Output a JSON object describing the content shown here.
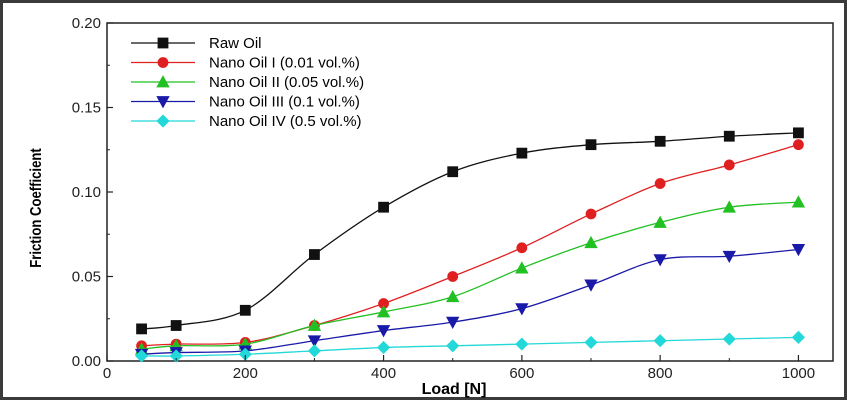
{
  "chart_data": {
    "type": "line",
    "title": "",
    "xlabel": "Load [N]",
    "ylabel": "Friction Coefficient",
    "xlim": [
      0,
      1050
    ],
    "ylim": [
      0,
      0.2
    ],
    "xticks": [
      "0",
      "200",
      "400",
      "600",
      "800",
      "1000"
    ],
    "yticks": [
      "0.00",
      "0.05",
      "0.10",
      "0.15",
      "0.20"
    ],
    "x": [
      50,
      100,
      200,
      300,
      400,
      500,
      600,
      700,
      800,
      900,
      1000
    ],
    "legend_position": "top-left",
    "grid": false,
    "series": [
      {
        "name": "Raw Oil",
        "color": "#111111",
        "marker": "square",
        "values": [
          0.019,
          0.021,
          0.03,
          0.063,
          0.091,
          0.112,
          0.123,
          0.128,
          0.13,
          0.133,
          0.135
        ]
      },
      {
        "name": "Nano Oil I (0.01 vol.%)",
        "color": "#e02020",
        "marker": "circle",
        "values": [
          0.009,
          0.01,
          0.011,
          0.021,
          0.034,
          0.05,
          0.067,
          0.087,
          0.105,
          0.116,
          0.128
        ]
      },
      {
        "name": "Nano Oil II (0.05 vol.%)",
        "color": "#22c022",
        "marker": "triangle-up",
        "values": [
          0.007,
          0.009,
          0.01,
          0.021,
          0.029,
          0.038,
          0.055,
          0.07,
          0.082,
          0.091,
          0.094
        ]
      },
      {
        "name": "Nano Oil III (0.1 vol.%)",
        "color": "#1a1aa8",
        "marker": "triangle-down",
        "values": [
          0.004,
          0.005,
          0.006,
          0.012,
          0.018,
          0.023,
          0.031,
          0.045,
          0.06,
          0.062,
          0.066
        ]
      },
      {
        "name": "Nano Oil IV (0.5 vol.%)",
        "color": "#22d8d8",
        "marker": "diamond",
        "values": [
          0.003,
          0.003,
          0.004,
          0.006,
          0.008,
          0.009,
          0.01,
          0.011,
          0.012,
          0.013,
          0.014
        ]
      }
    ]
  }
}
